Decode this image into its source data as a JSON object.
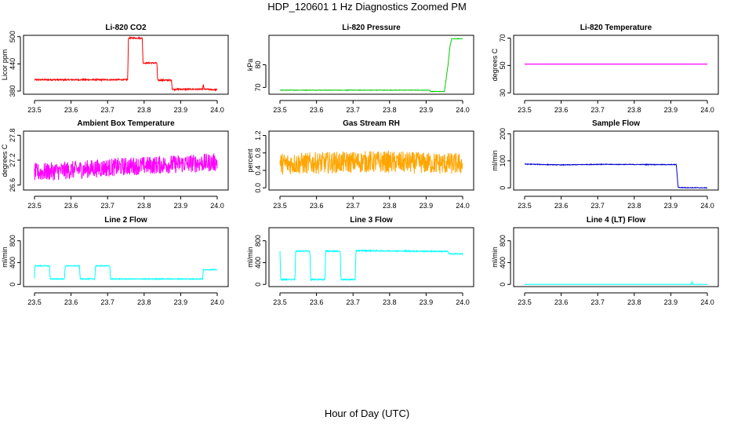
{
  "figure": {
    "title": "HDP_120601  1 Hz Diagnostics Zoomed PM",
    "xlabel": "Hour of Day (UTC)"
  },
  "chart_data": [
    {
      "type": "line",
      "id": "co2",
      "title": "Li-820 CO2",
      "ylabel": "Licor ppm",
      "color": "#ff0000",
      "xlim": [
        23.5,
        24.0
      ],
      "ylim": [
        373,
        503
      ],
      "x_ticks": [
        "23.5",
        "23.6",
        "23.7",
        "23.8",
        "23.9",
        "24.0"
      ],
      "y_ticks": [
        380,
        440,
        500
      ],
      "series": [
        {
          "x": [
            23.5,
            23.755,
            23.757,
            23.795,
            23.797,
            23.835,
            23.837,
            23.875,
            23.877,
            23.96,
            23.962,
            23.964,
            24.0
          ],
          "y": [
            405,
            405,
            497,
            497,
            442,
            442,
            404,
            404,
            384,
            384,
            395,
            384,
            383
          ],
          "noise": 1.5
        }
      ]
    },
    {
      "type": "line",
      "id": "pressure",
      "title": "Li-820 Pressure",
      "ylabel": "kPa",
      "color": "#00cc00",
      "xlim": [
        23.5,
        24.0
      ],
      "ylim": [
        67,
        93
      ],
      "x_ticks": [
        "23.5",
        "23.6",
        "23.7",
        "23.8",
        "23.9",
        "24.0"
      ],
      "y_ticks": [
        70,
        80
      ],
      "series": [
        {
          "x": [
            23.5,
            23.91,
            23.912,
            23.95,
            23.96,
            23.965,
            23.97,
            24.0
          ],
          "y": [
            68.8,
            68.8,
            68.2,
            68.2,
            80,
            88,
            91.5,
            91.5
          ],
          "noise": 0.1
        }
      ]
    },
    {
      "type": "line",
      "id": "temperature",
      "title": "Li-820 Temperature",
      "ylabel": "degrees C",
      "color": "#ff00ff",
      "xlim": [
        23.5,
        24.0
      ],
      "ylim": [
        29,
        72
      ],
      "x_ticks": [
        "23.5",
        "23.6",
        "23.7",
        "23.8",
        "23.9",
        "24.0"
      ],
      "y_ticks": [
        30,
        50,
        70
      ],
      "series": [
        {
          "x": [
            23.5,
            24.0
          ],
          "y": [
            51,
            51
          ],
          "noise": 0
        }
      ]
    },
    {
      "type": "line",
      "id": "ambient",
      "title": "Ambient Box Temperature",
      "ylabel": "degrees C",
      "color": "#ff00ff",
      "xlim": [
        23.5,
        24.0
      ],
      "ylim": [
        26.48,
        27.9
      ],
      "x_ticks": [
        "23.5",
        "23.6",
        "23.7",
        "23.8",
        "23.9",
        "24.0"
      ],
      "y_ticks": [
        26.6,
        27.2,
        27.8
      ],
      "series": [
        {
          "x": [
            23.5,
            23.75,
            24.0
          ],
          "y": [
            26.9,
            27.05,
            27.15
          ],
          "noise": 0.22
        }
      ]
    },
    {
      "type": "line",
      "id": "rh",
      "title": "Gas Stream RH",
      "ylabel": "percent",
      "color": "#ffa500",
      "xlim": [
        23.5,
        24.0
      ],
      "ylim": [
        -0.05,
        1.3
      ],
      "x_ticks": [
        "23.5",
        "23.6",
        "23.7",
        "23.8",
        "23.9",
        "24.0"
      ],
      "y_ticks": [
        0.0,
        0.4,
        0.8,
        1.2
      ],
      "y_tick_labels": [
        "0.0",
        "0.4",
        "0.8",
        "1.2"
      ],
      "series": [
        {
          "x": [
            23.5,
            23.75,
            24.0
          ],
          "y": [
            0.55,
            0.6,
            0.55
          ],
          "noise": 0.25
        }
      ]
    },
    {
      "type": "line",
      "id": "sample_flow",
      "title": "Sample Flow",
      "ylabel": "ml/min",
      "color": "#0000cc",
      "xlim": [
        23.5,
        24.0
      ],
      "ylim": [
        -8,
        210
      ],
      "x_ticks": [
        "23.5",
        "23.6",
        "23.7",
        "23.8",
        "23.9",
        "24.0"
      ],
      "y_ticks": [
        0,
        100,
        200
      ],
      "series": [
        {
          "x": [
            23.5,
            23.6,
            23.7,
            23.915,
            23.92,
            23.925,
            24.0
          ],
          "y": [
            88,
            85,
            87,
            86,
            3,
            1,
            0
          ],
          "noise": 1.2
        }
      ]
    },
    {
      "type": "line",
      "id": "line2",
      "title": "Line 2 Flow",
      "ylabel": "ml/min",
      "color": "#00ffff",
      "xlim": [
        23.5,
        24.0
      ],
      "ylim": [
        -40,
        1040
      ],
      "x_ticks": [
        "23.5",
        "23.6",
        "23.7",
        "23.8",
        "23.9",
        "24.0"
      ],
      "y_ticks": [
        0,
        400,
        800
      ],
      "series": [
        {
          "x": [
            23.5,
            23.5,
            23.541,
            23.543,
            23.582,
            23.584,
            23.623,
            23.625,
            23.665,
            23.667,
            23.706,
            23.708,
            23.96,
            23.962,
            24.0
          ],
          "y": [
            110,
            340,
            340,
            100,
            100,
            340,
            340,
            100,
            100,
            340,
            340,
            100,
            100,
            270,
            270
          ],
          "noise": 8
        }
      ]
    },
    {
      "type": "line",
      "id": "line3",
      "title": "Line 3 Flow",
      "ylabel": "ml/min",
      "color": "#00ffff",
      "xlim": [
        23.5,
        24.0
      ],
      "ylim": [
        -40,
        1040
      ],
      "x_ticks": [
        "23.5",
        "23.6",
        "23.7",
        "23.8",
        "23.9",
        "24.0"
      ],
      "y_ticks": [
        0,
        400,
        800
      ],
      "series": [
        {
          "x": [
            23.5,
            23.5,
            23.502,
            23.541,
            23.543,
            23.582,
            23.584,
            23.623,
            23.625,
            23.665,
            23.667,
            23.706,
            23.708,
            23.96,
            23.962,
            24.0
          ],
          "y": [
            600,
            600,
            90,
            90,
            610,
            610,
            90,
            90,
            610,
            610,
            90,
            90,
            620,
            605,
            560,
            560
          ],
          "noise": 10
        }
      ]
    },
    {
      "type": "line",
      "id": "line4",
      "title": "Line 4 (LT) Flow",
      "ylabel": "ml/min",
      "color": "#00ffff",
      "xlim": [
        23.5,
        24.0
      ],
      "ylim": [
        -40,
        1040
      ],
      "x_ticks": [
        "23.5",
        "23.6",
        "23.7",
        "23.8",
        "23.9",
        "24.0"
      ],
      "y_ticks": [
        0,
        400,
        800
      ],
      "series": [
        {
          "x": [
            23.5,
            23.957,
            23.958,
            23.959,
            23.96,
            24.0
          ],
          "y": [
            0,
            0,
            60,
            0,
            0,
            0
          ],
          "noise": 0
        }
      ]
    }
  ]
}
